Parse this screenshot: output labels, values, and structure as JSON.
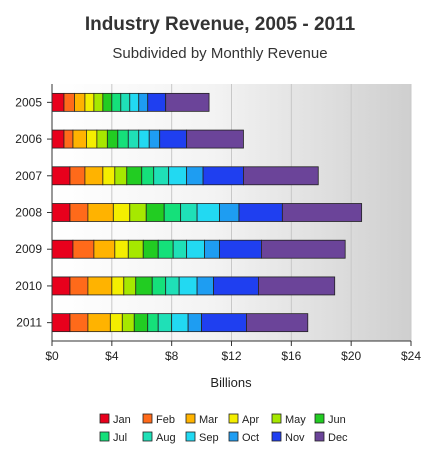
{
  "chart_data": {
    "type": "bar",
    "orientation": "horizontal",
    "stacked": true,
    "title": "Industry Revenue, 2005 - 2011",
    "subtitle": "Subdivided by Monthly Revenue",
    "xlabel": "Billions",
    "ylabel": "",
    "xlim": [
      0,
      24
    ],
    "x_ticks": [
      "$0",
      "$4",
      "$8",
      "$12",
      "$16",
      "$20",
      "$24"
    ],
    "x_tick_values": [
      0,
      4,
      8,
      12,
      16,
      20,
      24
    ],
    "categories": [
      "2005",
      "2006",
      "2007",
      "2008",
      "2009",
      "2010",
      "2011"
    ],
    "legend_position": "bottom",
    "grid": true,
    "series": [
      {
        "name": "Jan",
        "color": "#e8001c",
        "values": [
          0.8,
          0.8,
          1.2,
          1.2,
          1.4,
          1.2,
          1.2
        ]
      },
      {
        "name": "Feb",
        "color": "#ff6a1a",
        "values": [
          0.7,
          0.6,
          1.0,
          1.2,
          1.4,
          1.2,
          1.2
        ]
      },
      {
        "name": "Mar",
        "color": "#ffb300",
        "values": [
          0.7,
          0.9,
          1.2,
          1.7,
          1.4,
          1.6,
          1.5
        ]
      },
      {
        "name": "Apr",
        "color": "#f4ee00",
        "values": [
          0.6,
          0.7,
          0.8,
          1.1,
          0.9,
          0.8,
          0.8
        ]
      },
      {
        "name": "May",
        "color": "#a6e800",
        "values": [
          0.6,
          0.7,
          0.8,
          1.1,
          1.0,
          0.8,
          0.8
        ]
      },
      {
        "name": "Jun",
        "color": "#22cc22",
        "values": [
          0.6,
          0.7,
          1.0,
          1.2,
          1.0,
          1.1,
          0.9
        ]
      },
      {
        "name": "Jul",
        "color": "#15e07a",
        "values": [
          0.6,
          0.7,
          0.8,
          1.1,
          1.0,
          0.9,
          0.7
        ]
      },
      {
        "name": "Aug",
        "color": "#1fe0b7",
        "values": [
          0.6,
          0.7,
          1.0,
          1.1,
          0.9,
          0.9,
          0.9
        ]
      },
      {
        "name": "Sep",
        "color": "#22d9f2",
        "values": [
          0.6,
          0.7,
          1.2,
          1.5,
          1.2,
          1.2,
          1.1
        ]
      },
      {
        "name": "Oct",
        "color": "#1e9df2",
        "values": [
          0.6,
          0.7,
          1.1,
          1.3,
          1.0,
          1.1,
          0.9
        ]
      },
      {
        "name": "Nov",
        "color": "#1f3ff0",
        "values": [
          1.2,
          1.8,
          2.7,
          2.9,
          2.8,
          3.0,
          3.0
        ]
      },
      {
        "name": "Dec",
        "color": "#6b4499",
        "values": [
          2.9,
          3.8,
          5.0,
          5.3,
          5.6,
          5.1,
          4.1
        ]
      }
    ]
  }
}
